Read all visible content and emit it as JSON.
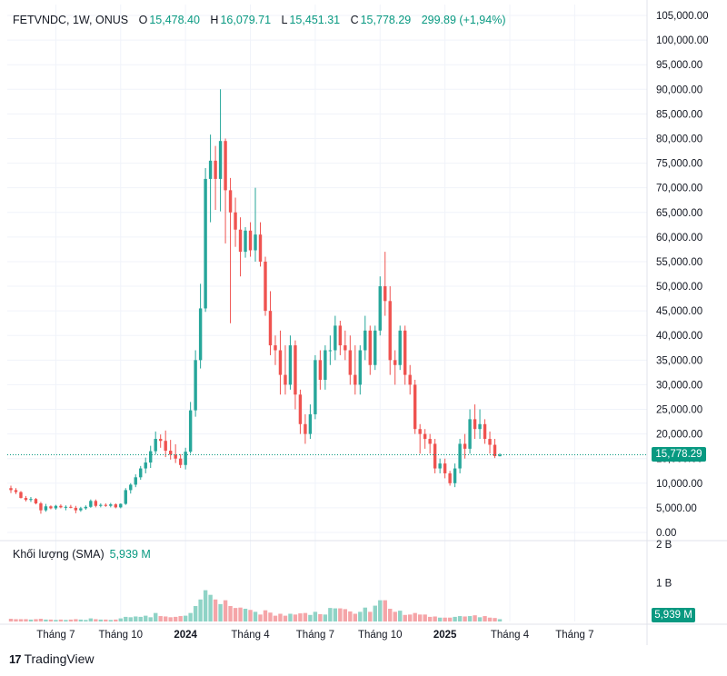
{
  "header": {
    "symbol": "FETVNDC, 1W, ONUS",
    "open_label": "O",
    "open": "15,478.40",
    "high_label": "H",
    "high": "16,079.71",
    "low_label": "L",
    "low": "15,451.31",
    "close_label": "C",
    "close": "15,778.29",
    "change": "299.89 (+1,94%)"
  },
  "volume_legend": {
    "label": "Khối lượng (SMA)",
    "value": "5,939 M"
  },
  "price_tag": "15,778.29",
  "volume_tag": "5,939 M",
  "brand": {
    "name": "TradingView",
    "mark": "17"
  },
  "colors": {
    "up": "#26a69a",
    "down": "#ef5350",
    "up_volume": "#8fd3c6",
    "down_volume": "#f5a5a8",
    "grid": "#f0f3fa",
    "accent": "#089981"
  },
  "chart_data": {
    "type": "candlestick",
    "symbol": "FETVNDC",
    "interval": "1W",
    "exchange": "ONUS",
    "last_price": 15778.29,
    "price_axis": {
      "ylim": [
        0,
        105000
      ],
      "ticks": [
        "105,000.00",
        "100,000.00",
        "95,000.00",
        "90,000.00",
        "85,000.00",
        "80,000.00",
        "75,000.00",
        "70,000.00",
        "65,000.00",
        "60,000.00",
        "55,000.00",
        "50,000.00",
        "45,000.00",
        "40,000.00",
        "35,000.00",
        "30,000.00",
        "25,000.00",
        "20,000.00",
        "15,000.00",
        "10,000.00",
        "5,000.00",
        "0.00"
      ]
    },
    "volume_axis": {
      "ticks": [
        "2 B",
        "1 B"
      ],
      "last_volume": 5939000
    },
    "time_axis": {
      "labels": [
        {
          "text": "Tháng 7",
          "bold": false,
          "week": 9
        },
        {
          "text": "Tháng 10",
          "bold": false,
          "week": 22
        },
        {
          "text": "2024",
          "bold": true,
          "week": 35
        },
        {
          "text": "Tháng 4",
          "bold": false,
          "week": 48
        },
        {
          "text": "Tháng 7",
          "bold": false,
          "week": 61
        },
        {
          "text": "Tháng 10",
          "bold": false,
          "week": 74
        },
        {
          "text": "2025",
          "bold": true,
          "week": 87
        },
        {
          "text": "Tháng 4",
          "bold": false,
          "week": 100
        },
        {
          "text": "Tháng 7",
          "bold": false,
          "week": 113
        }
      ]
    },
    "candles": [
      [
        9000,
        9500,
        8000,
        8600,
        0.07
      ],
      [
        8600,
        9000,
        7800,
        8200,
        0.06
      ],
      [
        8200,
        8400,
        6900,
        7000,
        0.06
      ],
      [
        7000,
        7400,
        6300,
        6600,
        0.06
      ],
      [
        6600,
        7200,
        6200,
        6800,
        0.05
      ],
      [
        6800,
        7000,
        5700,
        5900,
        0.06
      ],
      [
        5900,
        6200,
        3800,
        4500,
        0.07
      ],
      [
        4500,
        5800,
        4200,
        5300,
        0.05
      ],
      [
        5300,
        5500,
        4700,
        4900,
        0.05
      ],
      [
        4900,
        5600,
        4600,
        5400,
        0.04
      ],
      [
        5400,
        5700,
        4900,
        5100,
        0.05
      ],
      [
        5100,
        5500,
        4500,
        5200,
        0.04
      ],
      [
        5200,
        5600,
        4900,
        5000,
        0.05
      ],
      [
        5000,
        5400,
        3900,
        4500,
        0.06
      ],
      [
        4500,
        5200,
        4200,
        4900,
        0.05
      ],
      [
        4900,
        5500,
        4600,
        5200,
        0.04
      ],
      [
        5200,
        6700,
        5000,
        6400,
        0.08
      ],
      [
        6400,
        6700,
        5100,
        5400,
        0.06
      ],
      [
        5400,
        5900,
        5100,
        5600,
        0.05
      ],
      [
        5600,
        5900,
        5200,
        5400,
        0.05
      ],
      [
        5400,
        6000,
        5100,
        5700,
        0.04
      ],
      [
        5700,
        5900,
        4900,
        5100,
        0.05
      ],
      [
        5100,
        5900,
        4900,
        5800,
        0.08
      ],
      [
        5800,
        9000,
        5600,
        8600,
        0.12
      ],
      [
        8600,
        10000,
        7900,
        9700,
        0.11
      ],
      [
        9700,
        11800,
        9200,
        11200,
        0.13
      ],
      [
        11200,
        13500,
        10700,
        13000,
        0.12
      ],
      [
        13000,
        15200,
        12000,
        14200,
        0.15
      ],
      [
        14200,
        17600,
        13100,
        16500,
        0.11
      ],
      [
        16500,
        20500,
        15900,
        19000,
        0.22
      ],
      [
        19000,
        19900,
        17200,
        18600,
        0.14
      ],
      [
        18600,
        20700,
        15300,
        16600,
        0.13
      ],
      [
        16600,
        18800,
        14800,
        15800,
        0.11
      ],
      [
        15800,
        17900,
        14100,
        15000,
        0.12
      ],
      [
        15000,
        15900,
        13100,
        13700,
        0.14
      ],
      [
        13700,
        17200,
        12800,
        16400,
        0.15
      ],
      [
        16400,
        26500,
        16000,
        24800,
        0.22
      ],
      [
        24800,
        37000,
        23500,
        35000,
        0.4
      ],
      [
        35000,
        50500,
        33300,
        45500,
        0.57
      ],
      [
        45500,
        74000,
        44800,
        71800,
        0.81
      ],
      [
        71800,
        80800,
        63000,
        75500,
        0.69
      ],
      [
        75500,
        78500,
        65500,
        71800,
        0.57
      ],
      [
        71800,
        90000,
        65200,
        79500,
        0.45
      ],
      [
        79500,
        80000,
        58700,
        69500,
        0.55
      ],
      [
        69500,
        72000,
        42500,
        65000,
        0.4
      ],
      [
        65000,
        68000,
        58000,
        61500,
        0.35
      ],
      [
        61500,
        64000,
        52000,
        57000,
        0.36
      ],
      [
        57000,
        62000,
        55800,
        61300,
        0.33
      ],
      [
        61300,
        63000,
        56000,
        57300,
        0.3
      ],
      [
        57300,
        70000,
        55000,
        60500,
        0.25
      ],
      [
        60500,
        63000,
        54000,
        55000,
        0.18
      ],
      [
        55000,
        56000,
        44000,
        45000,
        0.29
      ],
      [
        45000,
        49000,
        36000,
        38000,
        0.23
      ],
      [
        38000,
        40000,
        34000,
        37000,
        0.15
      ],
      [
        37000,
        41000,
        28000,
        32000,
        0.2
      ],
      [
        32000,
        38000,
        28000,
        30000,
        0.15
      ],
      [
        30000,
        40000,
        29000,
        38000,
        0.2
      ],
      [
        38000,
        39000,
        25000,
        28000,
        0.18
      ],
      [
        28000,
        29000,
        20000,
        22000,
        0.21
      ],
      [
        22000,
        24000,
        18000,
        20000,
        0.22
      ],
      [
        20000,
        26000,
        19000,
        24000,
        0.17
      ],
      [
        24000,
        36000,
        23000,
        35000,
        0.25
      ],
      [
        35000,
        37000,
        29000,
        31000,
        0.19
      ],
      [
        31000,
        38000,
        29000,
        37000,
        0.18
      ],
      [
        37000,
        40000,
        34000,
        37000,
        0.35
      ],
      [
        37000,
        44000,
        35000,
        42000,
        0.34
      ],
      [
        42000,
        43000,
        36000,
        38000,
        0.34
      ],
      [
        38000,
        41000,
        35000,
        37000,
        0.32
      ],
      [
        37000,
        40000,
        30000,
        32000,
        0.26
      ],
      [
        32000,
        38000,
        28000,
        30000,
        0.2
      ],
      [
        30000,
        38000,
        28000,
        37000,
        0.25
      ],
      [
        37000,
        44000,
        35000,
        41000,
        0.36
      ],
      [
        41000,
        42000,
        32000,
        34000,
        0.25
      ],
      [
        34000,
        42000,
        33000,
        41000,
        0.41
      ],
      [
        41000,
        52000,
        40000,
        50000,
        0.55
      ],
      [
        50000,
        57000,
        44000,
        47000,
        0.55
      ],
      [
        47000,
        50000,
        32000,
        35000,
        0.33
      ],
      [
        35000,
        37000,
        30000,
        34000,
        0.25
      ],
      [
        34000,
        42000,
        33000,
        41000,
        0.28
      ],
      [
        41000,
        42000,
        30000,
        32000,
        0.17
      ],
      [
        32000,
        34000,
        28000,
        30000,
        0.18
      ],
      [
        30000,
        31000,
        20000,
        21000,
        0.22
      ],
      [
        21000,
        22000,
        16000,
        20000,
        0.18
      ],
      [
        20000,
        21000,
        17000,
        19000,
        0.18
      ],
      [
        19000,
        20000,
        16000,
        18000,
        0.12
      ],
      [
        18000,
        19000,
        12000,
        13000,
        0.13
      ],
      [
        13000,
        15000,
        12000,
        14000,
        0.1
      ],
      [
        14000,
        15000,
        11000,
        12000,
        0.1
      ],
      [
        12000,
        12500,
        9500,
        10000,
        0.1
      ],
      [
        10000,
        14000,
        9200,
        13000,
        0.12
      ],
      [
        13000,
        19000,
        12000,
        18000,
        0.14
      ],
      [
        18000,
        20000,
        15000,
        17000,
        0.13
      ],
      [
        17000,
        25000,
        16000,
        23000,
        0.14
      ],
      [
        23000,
        26000,
        19000,
        21000,
        0.16
      ],
      [
        21000,
        25000,
        19000,
        22000,
        0.11
      ],
      [
        22000,
        23000,
        18000,
        19000,
        0.14
      ],
      [
        19000,
        20500,
        16000,
        17800,
        0.1
      ],
      [
        17800,
        19000,
        15100,
        15500,
        0.09
      ],
      [
        15478.4,
        16079.71,
        15451.31,
        15778.29,
        0.06
      ]
    ]
  }
}
